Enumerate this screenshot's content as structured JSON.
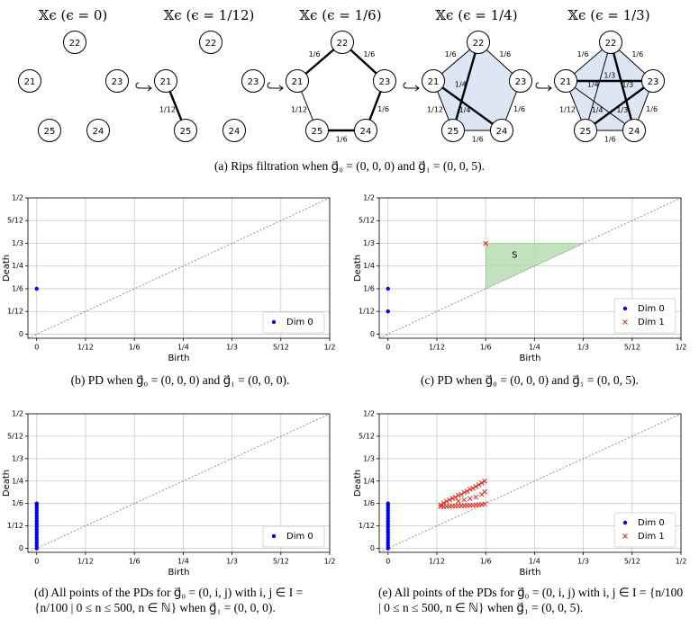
{
  "filtration": {
    "panels": [
      {
        "title": "𝕏ϵ (ϵ = 0)",
        "nodes": [
          "21",
          "22",
          "23",
          "24",
          "25"
        ]
      },
      {
        "title": "𝕏ϵ (ϵ = 1/12)",
        "nodes": [
          "21",
          "22",
          "23",
          "24",
          "25"
        ],
        "edges": [
          "1/12"
        ]
      },
      {
        "title": "𝕏ϵ (ϵ = 1/6)",
        "nodes": [
          "21",
          "22",
          "23",
          "24",
          "25"
        ],
        "edges": [
          "1/6",
          "1/6",
          "1/6",
          "1/6",
          "1/12"
        ]
      },
      {
        "title": "𝕏ϵ (ϵ = 1/4)",
        "nodes": [
          "21",
          "22",
          "23",
          "24",
          "25"
        ],
        "edges": [
          "1/6",
          "1/6",
          "1/6",
          "1/6",
          "1/12",
          "1/4",
          "1/4"
        ]
      },
      {
        "title": "𝕏ϵ (ϵ = 1/3)",
        "nodes": [
          "21",
          "22",
          "23",
          "24",
          "25"
        ],
        "edges": [
          "1/6",
          "1/6",
          "1/6",
          "1/6",
          "1/12",
          "1/4",
          "1/4",
          "1/3",
          "1/3",
          "1/3"
        ]
      }
    ],
    "caption": "(a) Rips filtration when g⃗₀ = (0, 0, 0) and g⃗₁ = (0, 0, 5)."
  },
  "chart_data": [
    {
      "type": "scatter",
      "xlabel": "Birth",
      "ylabel": "Death",
      "xlim": [
        -0.015,
        0.5
      ],
      "ylim": [
        -0.015,
        0.5
      ],
      "xticks": [
        0,
        {
          "value": 0.0833,
          "label": "1/12"
        },
        {
          "value": 0.1667,
          "label": "1/6"
        },
        {
          "value": 0.25,
          "label": "1/4"
        },
        {
          "value": 0.3333,
          "label": "1/3"
        },
        {
          "value": 0.4167,
          "label": "5/12"
        },
        {
          "value": 0.5,
          "label": "1/2"
        }
      ],
      "yticks": [
        0,
        {
          "value": 0.0833,
          "label": "1/12"
        },
        {
          "value": 0.1667,
          "label": "1/6"
        },
        {
          "value": 0.25,
          "label": "1/4"
        },
        {
          "value": 0.3333,
          "label": "1/3"
        },
        {
          "value": 0.4167,
          "label": "5/12"
        },
        {
          "value": 0.5,
          "label": "1/2"
        }
      ],
      "grid": true,
      "legend": "lower right",
      "series": [
        {
          "name": "Dim 0",
          "color": "#0000ff",
          "marker": "dot",
          "x": [
            0
          ],
          "values": [
            0.1667
          ]
        }
      ],
      "caption": "(b) PD when g⃗₀ = (0, 0, 0) and g⃗₁ = (0, 0, 0)."
    },
    {
      "type": "scatter",
      "xlabel": "Birth",
      "ylabel": "Death",
      "xlim": [
        -0.015,
        0.5
      ],
      "ylim": [
        -0.015,
        0.5
      ],
      "xticks": [
        0,
        {
          "value": 0.0833,
          "label": "1/12"
        },
        {
          "value": 0.1667,
          "label": "1/6"
        },
        {
          "value": 0.25,
          "label": "1/4"
        },
        {
          "value": 0.3333,
          "label": "1/3"
        },
        {
          "value": 0.4167,
          "label": "5/12"
        },
        {
          "value": 0.5,
          "label": "1/2"
        }
      ],
      "yticks": [
        0,
        {
          "value": 0.0833,
          "label": "1/12"
        },
        {
          "value": 0.1667,
          "label": "1/6"
        },
        {
          "value": 0.25,
          "label": "1/4"
        },
        {
          "value": 0.3333,
          "label": "1/3"
        },
        {
          "value": 0.4167,
          "label": "5/12"
        },
        {
          "value": 0.5,
          "label": "1/2"
        }
      ],
      "grid": true,
      "legend": "lower right",
      "series": [
        {
          "name": "Dim 0",
          "color": "#0000ff",
          "marker": "dot",
          "x": [
            0,
            0
          ],
          "values": [
            0.1667,
            0.0833
          ]
        },
        {
          "name": "Dim 1",
          "color": "#e8281c",
          "marker": "cross",
          "x": [
            0.1667
          ],
          "values": [
            0.3333
          ]
        }
      ],
      "region": {
        "label": "S",
        "color": "#b5d9b0",
        "x": [
          0.1667,
          0.1667,
          0.3333
        ],
        "values": [
          0.1667,
          0.3333,
          0.3333
        ]
      },
      "caption": "(c) PD when g⃗₀ = (0, 0, 0) and g⃗₁ = (0, 0, 5)."
    },
    {
      "type": "scatter",
      "xlabel": "Birth",
      "ylabel": "Death",
      "xlim": [
        -0.015,
        0.5
      ],
      "ylim": [
        -0.015,
        0.5
      ],
      "xticks": [
        0,
        {
          "value": 0.0833,
          "label": "1/12"
        },
        {
          "value": 0.1667,
          "label": "1/6"
        },
        {
          "value": 0.25,
          "label": "1/4"
        },
        {
          "value": 0.3333,
          "label": "1/3"
        },
        {
          "value": 0.4167,
          "label": "5/12"
        },
        {
          "value": 0.5,
          "label": "1/2"
        }
      ],
      "yticks": [
        0,
        {
          "value": 0.0833,
          "label": "1/12"
        },
        {
          "value": 0.1667,
          "label": "1/6"
        },
        {
          "value": 0.25,
          "label": "1/4"
        },
        {
          "value": 0.3333,
          "label": "1/3"
        },
        {
          "value": 0.4167,
          "label": "5/12"
        },
        {
          "value": 0.5,
          "label": "1/2"
        }
      ],
      "grid": true,
      "legend": "lower right",
      "series": [
        {
          "name": "Dim 0",
          "color": "#0000ff",
          "marker": "dot",
          "x": [
            0,
            0,
            0,
            0,
            0,
            0,
            0,
            0,
            0,
            0,
            0,
            0,
            0,
            0,
            0,
            0,
            0,
            0
          ],
          "values": [
            0,
            0.01,
            0.02,
            0.03,
            0.04,
            0.05,
            0.06,
            0.07,
            0.08,
            0.09,
            0.1,
            0.11,
            0.12,
            0.13,
            0.14,
            0.15,
            0.16,
            0.1667
          ]
        }
      ],
      "caption": "(d) All points of the PDs for g⃗₀ = (0, i, j) with i, j ∈ I = {n/100 | 0 ≤ n ≤ 500, n ∈ ℕ} when g⃗₁ = (0, 0, 0)."
    },
    {
      "type": "scatter",
      "xlabel": "Birth",
      "ylabel": "Death",
      "xlim": [
        -0.015,
        0.5
      ],
      "ylim": [
        -0.015,
        0.5
      ],
      "xticks": [
        0,
        {
          "value": 0.0833,
          "label": "1/12"
        },
        {
          "value": 0.1667,
          "label": "1/6"
        },
        {
          "value": 0.25,
          "label": "1/4"
        },
        {
          "value": 0.3333,
          "label": "1/3"
        },
        {
          "value": 0.4167,
          "label": "5/12"
        },
        {
          "value": 0.5,
          "label": "1/2"
        }
      ],
      "yticks": [
        0,
        {
          "value": 0.0833,
          "label": "1/12"
        },
        {
          "value": 0.1667,
          "label": "1/6"
        },
        {
          "value": 0.25,
          "label": "1/4"
        },
        {
          "value": 0.3333,
          "label": "1/3"
        },
        {
          "value": 0.4167,
          "label": "5/12"
        },
        {
          "value": 0.5,
          "label": "1/2"
        }
      ],
      "grid": true,
      "legend": "lower right",
      "series": [
        {
          "name": "Dim 0",
          "color": "#0000ff",
          "marker": "dot",
          "x": [
            0,
            0,
            0,
            0,
            0,
            0,
            0,
            0,
            0,
            0,
            0,
            0,
            0,
            0,
            0,
            0,
            0,
            0
          ],
          "values": [
            0,
            0.01,
            0.02,
            0.03,
            0.04,
            0.05,
            0.06,
            0.07,
            0.08,
            0.09,
            0.1,
            0.11,
            0.12,
            0.13,
            0.14,
            0.15,
            0.16,
            0.1667
          ]
        },
        {
          "name": "Dim 1",
          "color": "#e8281c",
          "marker": "cross",
          "x": [
            0.09,
            0.09,
            0.095,
            0.095,
            0.1,
            0.1,
            0.105,
            0.105,
            0.11,
            0.11,
            0.115,
            0.115,
            0.12,
            0.12,
            0.125,
            0.125,
            0.13,
            0.13,
            0.135,
            0.135,
            0.14,
            0.14,
            0.145,
            0.145,
            0.15,
            0.15,
            0.155,
            0.155,
            0.16,
            0.16,
            0.165,
            0.165,
            0.12,
            0.13,
            0.14,
            0.15,
            0.16,
            0.165
          ],
          "values": [
            0.155,
            0.162,
            0.155,
            0.168,
            0.156,
            0.175,
            0.156,
            0.18,
            0.157,
            0.186,
            0.157,
            0.19,
            0.158,
            0.197,
            0.158,
            0.2,
            0.159,
            0.208,
            0.159,
            0.212,
            0.16,
            0.22,
            0.16,
            0.223,
            0.161,
            0.23,
            0.162,
            0.236,
            0.163,
            0.243,
            0.165,
            0.25,
            0.175,
            0.18,
            0.185,
            0.19,
            0.2,
            0.21
          ]
        }
      ],
      "caption": "(e) All points of the PDs for g⃗₀ = (0, i, j) with i, j ∈ I = {n/100 | 0 ≤ n ≤ 500, n ∈ ℕ} when g⃗₁ = (0, 0, 5)."
    }
  ]
}
